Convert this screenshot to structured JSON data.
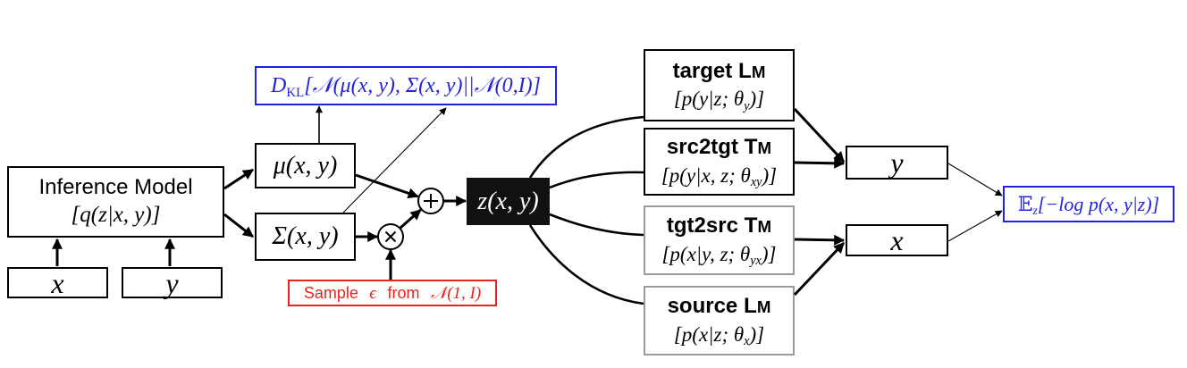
{
  "diagram": {
    "inference_model": {
      "title": "Inference Model",
      "formula": "[q(z|x, y)]"
    },
    "input_x": "x",
    "input_y": "y",
    "mean": "μ(x, y)",
    "covariance": "Σ(x, y)",
    "kl_term": {
      "symbol": "D",
      "subscript": "KL",
      "body": "[𝒩(μ(x, y), Σ(x, y)||𝒩(0,I)]"
    },
    "noise_sample": {
      "word_sample": "Sample",
      "epsilon": "ϵ",
      "word_from": "from",
      "distribution": "𝒩(1, I)"
    },
    "latent": "z(x, y)",
    "models": [
      {
        "name": "target",
        "abbr": "LM",
        "formula_pre": "[p(y|z; θ",
        "formula_sub": "y",
        "formula_post": ")]"
      },
      {
        "name": "src2tgt",
        "abbr": "TM",
        "formula_pre": "[p(y|x, z; θ",
        "formula_sub": "xy",
        "formula_post": ")]"
      },
      {
        "name": "tgt2src",
        "abbr": "TM",
        "formula_pre": "[p(x|y, z; θ",
        "formula_sub": "yx",
        "formula_post": ")]"
      },
      {
        "name": "source",
        "abbr": "LM",
        "formula_pre": "[p(x|z; θ",
        "formula_sub": "x",
        "formula_post": ")]"
      }
    ],
    "output_y": "y",
    "output_x": "x",
    "objective": {
      "symbol": "𝔼",
      "subscript": "z",
      "body": "[−log p(x, y|z)]"
    },
    "operators": {
      "add": "plus-circle-icon",
      "multiply": "times-circle-icon"
    }
  },
  "colors": {
    "line": "#000000",
    "kl_blue": "#2424d6",
    "objective_blue": "#2424d6",
    "sample_red": "#e3261f",
    "latent_fill": "#111111",
    "latent_text": "#ffffff",
    "model_border_dark": "#000000",
    "model_border_gray": "#9a9a9a"
  }
}
